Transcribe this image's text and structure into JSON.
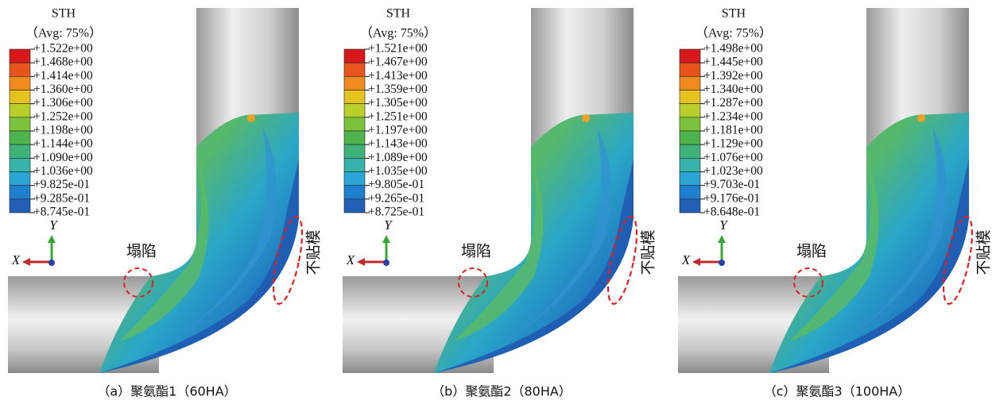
{
  "panels": [
    {
      "legend": {
        "title": "STH",
        "subtitle": "（Avg: 75%）",
        "labels": [
          "+1.522e+00",
          "+1.468e+00",
          "+1.414e+00",
          "+1.360e+00",
          "+1.306e+00",
          "+1.252e+00",
          "+1.198e+00",
          "+1.144e+00",
          "+1.090e+00",
          "+1.036e+00",
          "+9.825e-01",
          "+9.285e-01",
          "+8.745e-01"
        ]
      },
      "axes": {
        "x": "X",
        "y": "Y"
      },
      "annotations": {
        "collapse": "塌陷",
        "gap": "不贴模"
      },
      "caption": "（a）聚氨酯1（60HA）"
    },
    {
      "legend": {
        "title": "STH",
        "subtitle": "（Avg: 75%）",
        "labels": [
          "+1.521e+00",
          "+1.467e+00",
          "+1.413e+00",
          "+1.359e+00",
          "+1.305e+00",
          "+1.251e+00",
          "+1.197e+00",
          "+1.143e+00",
          "+1.089e+00",
          "+1.035e+00",
          "+9.805e-01",
          "+9.265e-01",
          "+8.725e-01"
        ]
      },
      "axes": {
        "x": "X",
        "y": "Y"
      },
      "annotations": {
        "collapse": "塌陷",
        "gap": "不贴模"
      },
      "caption": "（b）聚氨酯2（80HA）"
    },
    {
      "legend": {
        "title": "STH",
        "subtitle": "（Avg: 75%）",
        "labels": [
          "+1.498e+00",
          "+1.445e+00",
          "+1.392e+00",
          "+1.340e+00",
          "+1.287e+00",
          "+1.234e+00",
          "+1.181e+00",
          "+1.129e+00",
          "+1.076e+00",
          "+1.023e+00",
          "+9.703e-01",
          "+9.176e-01",
          "+8.648e-01"
        ]
      },
      "axes": {
        "x": "X",
        "y": "Y"
      },
      "annotations": {
        "collapse": "塌陷",
        "gap": "不贴模"
      },
      "caption": "（c）聚氨酯3（100HA）"
    }
  ]
}
